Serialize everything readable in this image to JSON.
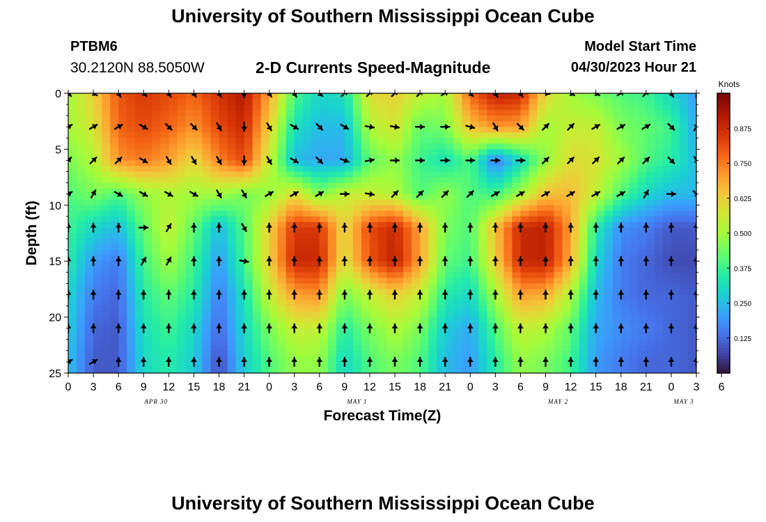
{
  "header": {
    "title": "University of Southern Mississippi Ocean Cube",
    "station": "PTBM6",
    "coords": "30.2120N  88.5050W",
    "subtitle": "2-D Currents Speed-Magnitude",
    "start_label": "Model Start Time",
    "start_value": "04/30/2023 Hour 21"
  },
  "footer": {
    "title": "University of Southern Mississippi Ocean Cube"
  },
  "chart_data": {
    "type": "heatmap",
    "title": "2-D Currents Speed-Magnitude",
    "xlabel": "Forecast Time(Z)",
    "ylabel": "Depth (ft)",
    "x_hours_from_start": [
      -21,
      54
    ],
    "x_tick_labels": [
      "0",
      "3",
      "6",
      "9",
      "12",
      "15",
      "18",
      "21",
      "0",
      "3",
      "6",
      "9",
      "12",
      "15",
      "18",
      "21",
      "0",
      "3",
      "6",
      "9",
      "12",
      "15",
      "18",
      "21",
      "0",
      "3",
      "6"
    ],
    "date_labels": [
      {
        "text": "APR 30",
        "hour": -10.5
      },
      {
        "text": "MAY 1",
        "hour": 13.5
      },
      {
        "text": "MAY 2",
        "hour": 37.5
      },
      {
        "text": "MAY 3",
        "hour": 52.5
      }
    ],
    "ylim": [
      0,
      25
    ],
    "y_ticks": [
      0,
      5,
      10,
      15,
      20,
      25
    ],
    "colorbar": {
      "label": "Knots",
      "range": [
        0.0,
        1.0
      ],
      "ticks": [
        "0.125",
        "0.250",
        "0.375",
        "0.500",
        "0.625",
        "0.750",
        "0.875"
      ],
      "tick_values": [
        0.125,
        0.25,
        0.375,
        0.5,
        0.625,
        0.75,
        0.875
      ]
    },
    "depths_ft": [
      0,
      3,
      6,
      9,
      12,
      15,
      18,
      21,
      24
    ],
    "times_hour": [
      -21,
      -18,
      -15,
      -12,
      -9,
      -6,
      -3,
      0,
      3,
      6,
      9,
      12,
      15,
      18,
      21,
      24,
      27,
      30,
      33,
      36,
      39,
      42,
      45,
      48,
      51,
      54
    ],
    "speed_knots": [
      [
        0.5,
        0.62,
        0.8,
        0.85,
        0.82,
        0.78,
        0.86,
        0.92,
        0.7,
        0.4,
        0.3,
        0.32,
        0.6,
        0.62,
        0.55,
        0.5,
        0.78,
        0.9,
        0.88,
        0.6,
        0.5,
        0.45,
        0.4,
        0.38,
        0.3,
        0.2
      ],
      [
        0.5,
        0.58,
        0.78,
        0.82,
        0.78,
        0.72,
        0.82,
        0.88,
        0.62,
        0.32,
        0.25,
        0.25,
        0.52,
        0.58,
        0.42,
        0.45,
        0.65,
        0.72,
        0.7,
        0.5,
        0.55,
        0.55,
        0.45,
        0.42,
        0.38,
        0.22
      ],
      [
        0.45,
        0.52,
        0.72,
        0.75,
        0.7,
        0.6,
        0.74,
        0.82,
        0.55,
        0.25,
        0.22,
        0.22,
        0.42,
        0.48,
        0.38,
        0.32,
        0.4,
        0.15,
        0.3,
        0.48,
        0.6,
        0.58,
        0.5,
        0.4,
        0.35,
        0.25
      ],
      [
        0.4,
        0.45,
        0.4,
        0.48,
        0.52,
        0.5,
        0.5,
        0.45,
        0.48,
        0.6,
        0.45,
        0.55,
        0.55,
        0.52,
        0.4,
        0.48,
        0.4,
        0.38,
        0.5,
        0.65,
        0.66,
        0.55,
        0.4,
        0.3,
        0.25,
        0.25
      ],
      [
        0.38,
        0.3,
        0.25,
        0.42,
        0.55,
        0.42,
        0.25,
        0.4,
        0.62,
        0.85,
        0.85,
        0.6,
        0.82,
        0.88,
        0.7,
        0.45,
        0.4,
        0.65,
        0.88,
        0.9,
        0.7,
        0.35,
        0.18,
        0.15,
        0.1,
        0.1
      ],
      [
        0.35,
        0.2,
        0.15,
        0.38,
        0.5,
        0.38,
        0.2,
        0.38,
        0.62,
        0.88,
        0.88,
        0.58,
        0.8,
        0.9,
        0.7,
        0.42,
        0.38,
        0.62,
        0.88,
        0.9,
        0.68,
        0.3,
        0.15,
        0.12,
        0.08,
        0.08
      ],
      [
        0.3,
        0.15,
        0.12,
        0.35,
        0.42,
        0.35,
        0.15,
        0.32,
        0.55,
        0.7,
        0.72,
        0.45,
        0.55,
        0.62,
        0.55,
        0.35,
        0.3,
        0.5,
        0.7,
        0.68,
        0.52,
        0.25,
        0.15,
        0.12,
        0.12,
        0.1
      ],
      [
        0.28,
        0.12,
        0.1,
        0.32,
        0.38,
        0.3,
        0.12,
        0.3,
        0.45,
        0.55,
        0.55,
        0.35,
        0.45,
        0.52,
        0.45,
        0.28,
        0.22,
        0.4,
        0.55,
        0.52,
        0.42,
        0.22,
        0.18,
        0.15,
        0.12,
        0.1
      ],
      [
        0.26,
        0.1,
        0.1,
        0.3,
        0.35,
        0.28,
        0.08,
        0.28,
        0.4,
        0.48,
        0.48,
        0.3,
        0.4,
        0.45,
        0.4,
        0.25,
        0.2,
        0.35,
        0.48,
        0.45,
        0.38,
        0.2,
        0.15,
        0.12,
        0.12,
        0.1
      ]
    ],
    "vector_directions_deg": [
      [
        135,
        120,
        150,
        135,
        150,
        150,
        150,
        180,
        150,
        150,
        135,
        45,
        45,
        45,
        45,
        60,
        135,
        150,
        150,
        100,
        120,
        120,
        60,
        45,
        150,
        0
      ],
      [
        60,
        60,
        60,
        120,
        135,
        135,
        150,
        180,
        150,
        120,
        135,
        120,
        100,
        100,
        90,
        90,
        105,
        150,
        135,
        45,
        45,
        60,
        60,
        60,
        135,
        30
      ],
      [
        45,
        45,
        45,
        120,
        150,
        150,
        150,
        180,
        150,
        120,
        135,
        110,
        80,
        90,
        90,
        90,
        90,
        90,
        90,
        45,
        45,
        45,
        45,
        45,
        135,
        150
      ],
      [
        60,
        30,
        120,
        120,
        120,
        120,
        150,
        150,
        60,
        60,
        60,
        90,
        100,
        45,
        45,
        45,
        45,
        60,
        60,
        60,
        60,
        60,
        60,
        30,
        90,
        135
      ],
      [
        0,
        0,
        0,
        90,
        30,
        0,
        0,
        150,
        0,
        0,
        0,
        0,
        0,
        0,
        0,
        0,
        0,
        0,
        0,
        0,
        0,
        0,
        0,
        0,
        0,
        0
      ],
      [
        0,
        0,
        0,
        30,
        30,
        0,
        0,
        100,
        0,
        0,
        0,
        0,
        0,
        0,
        0,
        0,
        0,
        0,
        0,
        0,
        0,
        0,
        0,
        0,
        0,
        0
      ],
      [
        0,
        0,
        0,
        0,
        0,
        0,
        0,
        0,
        0,
        0,
        0,
        0,
        0,
        0,
        0,
        0,
        0,
        0,
        0,
        0,
        0,
        0,
        0,
        0,
        0,
        0
      ],
      [
        0,
        0,
        0,
        0,
        0,
        0,
        0,
        0,
        0,
        0,
        0,
        0,
        0,
        0,
        0,
        0,
        0,
        0,
        0,
        0,
        0,
        0,
        0,
        0,
        0,
        0
      ],
      [
        60,
        60,
        0,
        0,
        0,
        0,
        0,
        0,
        0,
        0,
        0,
        0,
        0,
        0,
        0,
        0,
        0,
        0,
        0,
        0,
        0,
        0,
        0,
        0,
        0,
        0
      ]
    ]
  }
}
